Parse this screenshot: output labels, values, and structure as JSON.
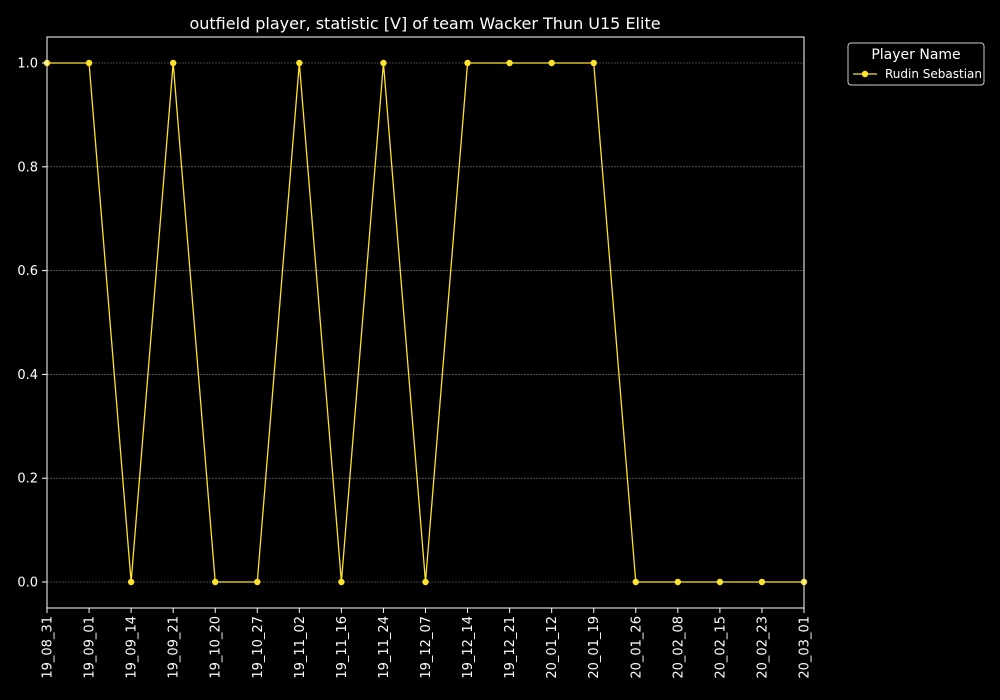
{
  "chart_data": {
    "type": "line",
    "title": "outfield player, statistic [V] of team Wacker Thun U15 Elite",
    "xlabel": "",
    "ylabel": "",
    "categories": [
      "19_08_31",
      "19_09_01",
      "19_09_14",
      "19_09_21",
      "19_10_20",
      "19_10_27",
      "19_11_02",
      "19_11_16",
      "19_11_24",
      "19_12_07",
      "19_12_14",
      "19_12_21",
      "20_01_12",
      "20_01_19",
      "20_01_26",
      "20_02_08",
      "20_02_15",
      "20_02_23",
      "20_03_01"
    ],
    "series": [
      {
        "name": "Rudin Sebastian",
        "values": [
          1,
          1,
          0,
          1,
          0,
          0,
          1,
          0,
          1,
          0,
          1,
          1,
          1,
          1,
          0,
          0,
          0,
          0,
          0
        ],
        "color": "#ffe22e"
      }
    ],
    "yticks": [
      "0.0",
      "0.2",
      "0.4",
      "0.6",
      "0.8",
      "1.0"
    ],
    "ylim": [
      -0.05,
      1.05
    ],
    "grid": true,
    "legend": {
      "title": "Player Name",
      "placement": "outside-top-right"
    },
    "colors": {
      "background": "#000000",
      "text": "#ffffff",
      "grid": "#808080",
      "line": "#ffe22e"
    }
  }
}
